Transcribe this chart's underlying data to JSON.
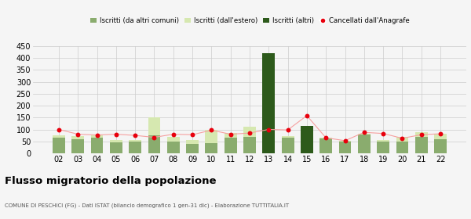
{
  "years": [
    "02",
    "03",
    "04",
    "05",
    "06",
    "07",
    "08",
    "09",
    "10",
    "11",
    "12",
    "13",
    "14",
    "15",
    "16",
    "17",
    "18",
    "19",
    "20",
    "21",
    "22"
  ],
  "iscritti_altri_comuni": [
    65,
    60,
    65,
    45,
    48,
    75,
    50,
    40,
    42,
    65,
    68,
    70,
    65,
    58,
    62,
    48,
    78,
    50,
    50,
    68,
    60
  ],
  "iscritti_estero": [
    12,
    12,
    10,
    10,
    8,
    75,
    20,
    15,
    55,
    20,
    42,
    8,
    8,
    8,
    2,
    5,
    5,
    5,
    18,
    20,
    22
  ],
  "iscritti_altri": [
    0,
    0,
    0,
    0,
    0,
    0,
    0,
    0,
    0,
    0,
    0,
    420,
    0,
    115,
    0,
    0,
    0,
    0,
    0,
    0,
    0
  ],
  "cancellati": [
    100,
    80,
    77,
    80,
    75,
    67,
    80,
    78,
    97,
    80,
    85,
    100,
    98,
    158,
    65,
    53,
    88,
    83,
    63,
    78,
    82
  ],
  "ylim": [
    0,
    450
  ],
  "yticks": [
    0,
    50,
    100,
    150,
    200,
    250,
    300,
    350,
    400,
    450
  ],
  "color_altri_comuni": "#8aac6e",
  "color_estero": "#d6e8b0",
  "color_altri": "#2d5a1b",
  "color_cancellati": "#e8000d",
  "color_cancellati_line": "#f5a0a0",
  "title": "Flusso migratorio della popolazione",
  "subtitle": "COMUNE DI PESCHICI (FG) - Dati ISTAT (bilancio demografico 1 gen-31 dic) - Elaborazione TUTTITALIA.IT",
  "legend_labels": [
    "Iscritti (da altri comuni)",
    "Iscritti (dall'estero)",
    "Iscritti (altri)",
    "Cancellati dall'Anagrafe"
  ],
  "background_color": "#f5f5f5",
  "grid_color": "#cccccc"
}
